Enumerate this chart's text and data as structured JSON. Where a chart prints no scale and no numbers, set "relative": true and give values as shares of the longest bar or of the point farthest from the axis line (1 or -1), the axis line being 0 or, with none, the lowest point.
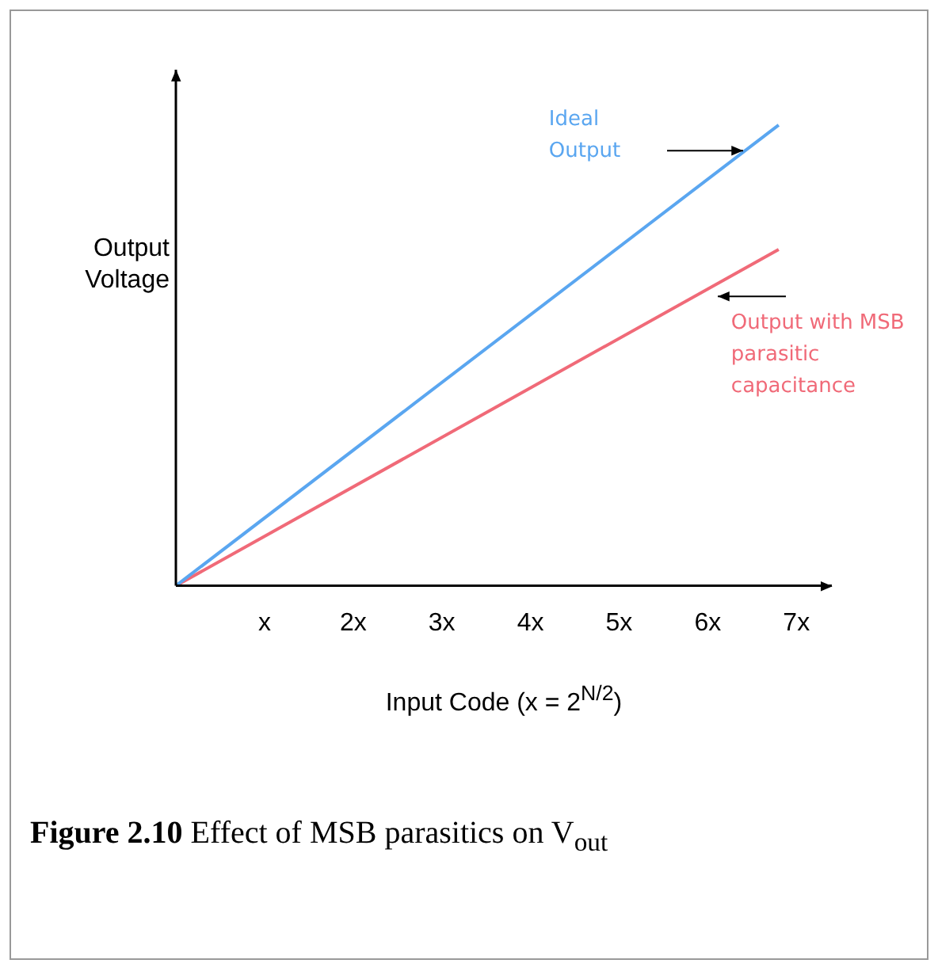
{
  "chart_data": {
    "type": "line",
    "relative": true,
    "xlabel": "Input Code (x = 2$^{N/2}$)",
    "ylabel": "Output Voltage",
    "x": [
      0,
      6.8
    ],
    "xlim": [
      0,
      7.4
    ],
    "xticks": [
      {
        "value": 1,
        "label": "x"
      },
      {
        "value": 2,
        "label": "2x"
      },
      {
        "value": 3,
        "label": "3x"
      },
      {
        "value": 4,
        "label": "4x"
      },
      {
        "value": 5,
        "label": "5x"
      },
      {
        "value": 6,
        "label": "6x"
      },
      {
        "value": 7,
        "label": "7x"
      }
    ],
    "series": [
      {
        "name": "Ideal Output",
        "color": "#5aa6f0",
        "values": [
          0,
          1
        ]
      },
      {
        "name": "Output with MSB parasitic capacitance",
        "color": "#f06a78",
        "values": [
          0,
          0.73
        ]
      }
    ],
    "grid": false,
    "legend": false,
    "marker": "none",
    "line_style": "solid",
    "annotations": [
      "Figure 2.10 Effect of MSB parasitics on V$_{out}$"
    ]
  }
}
